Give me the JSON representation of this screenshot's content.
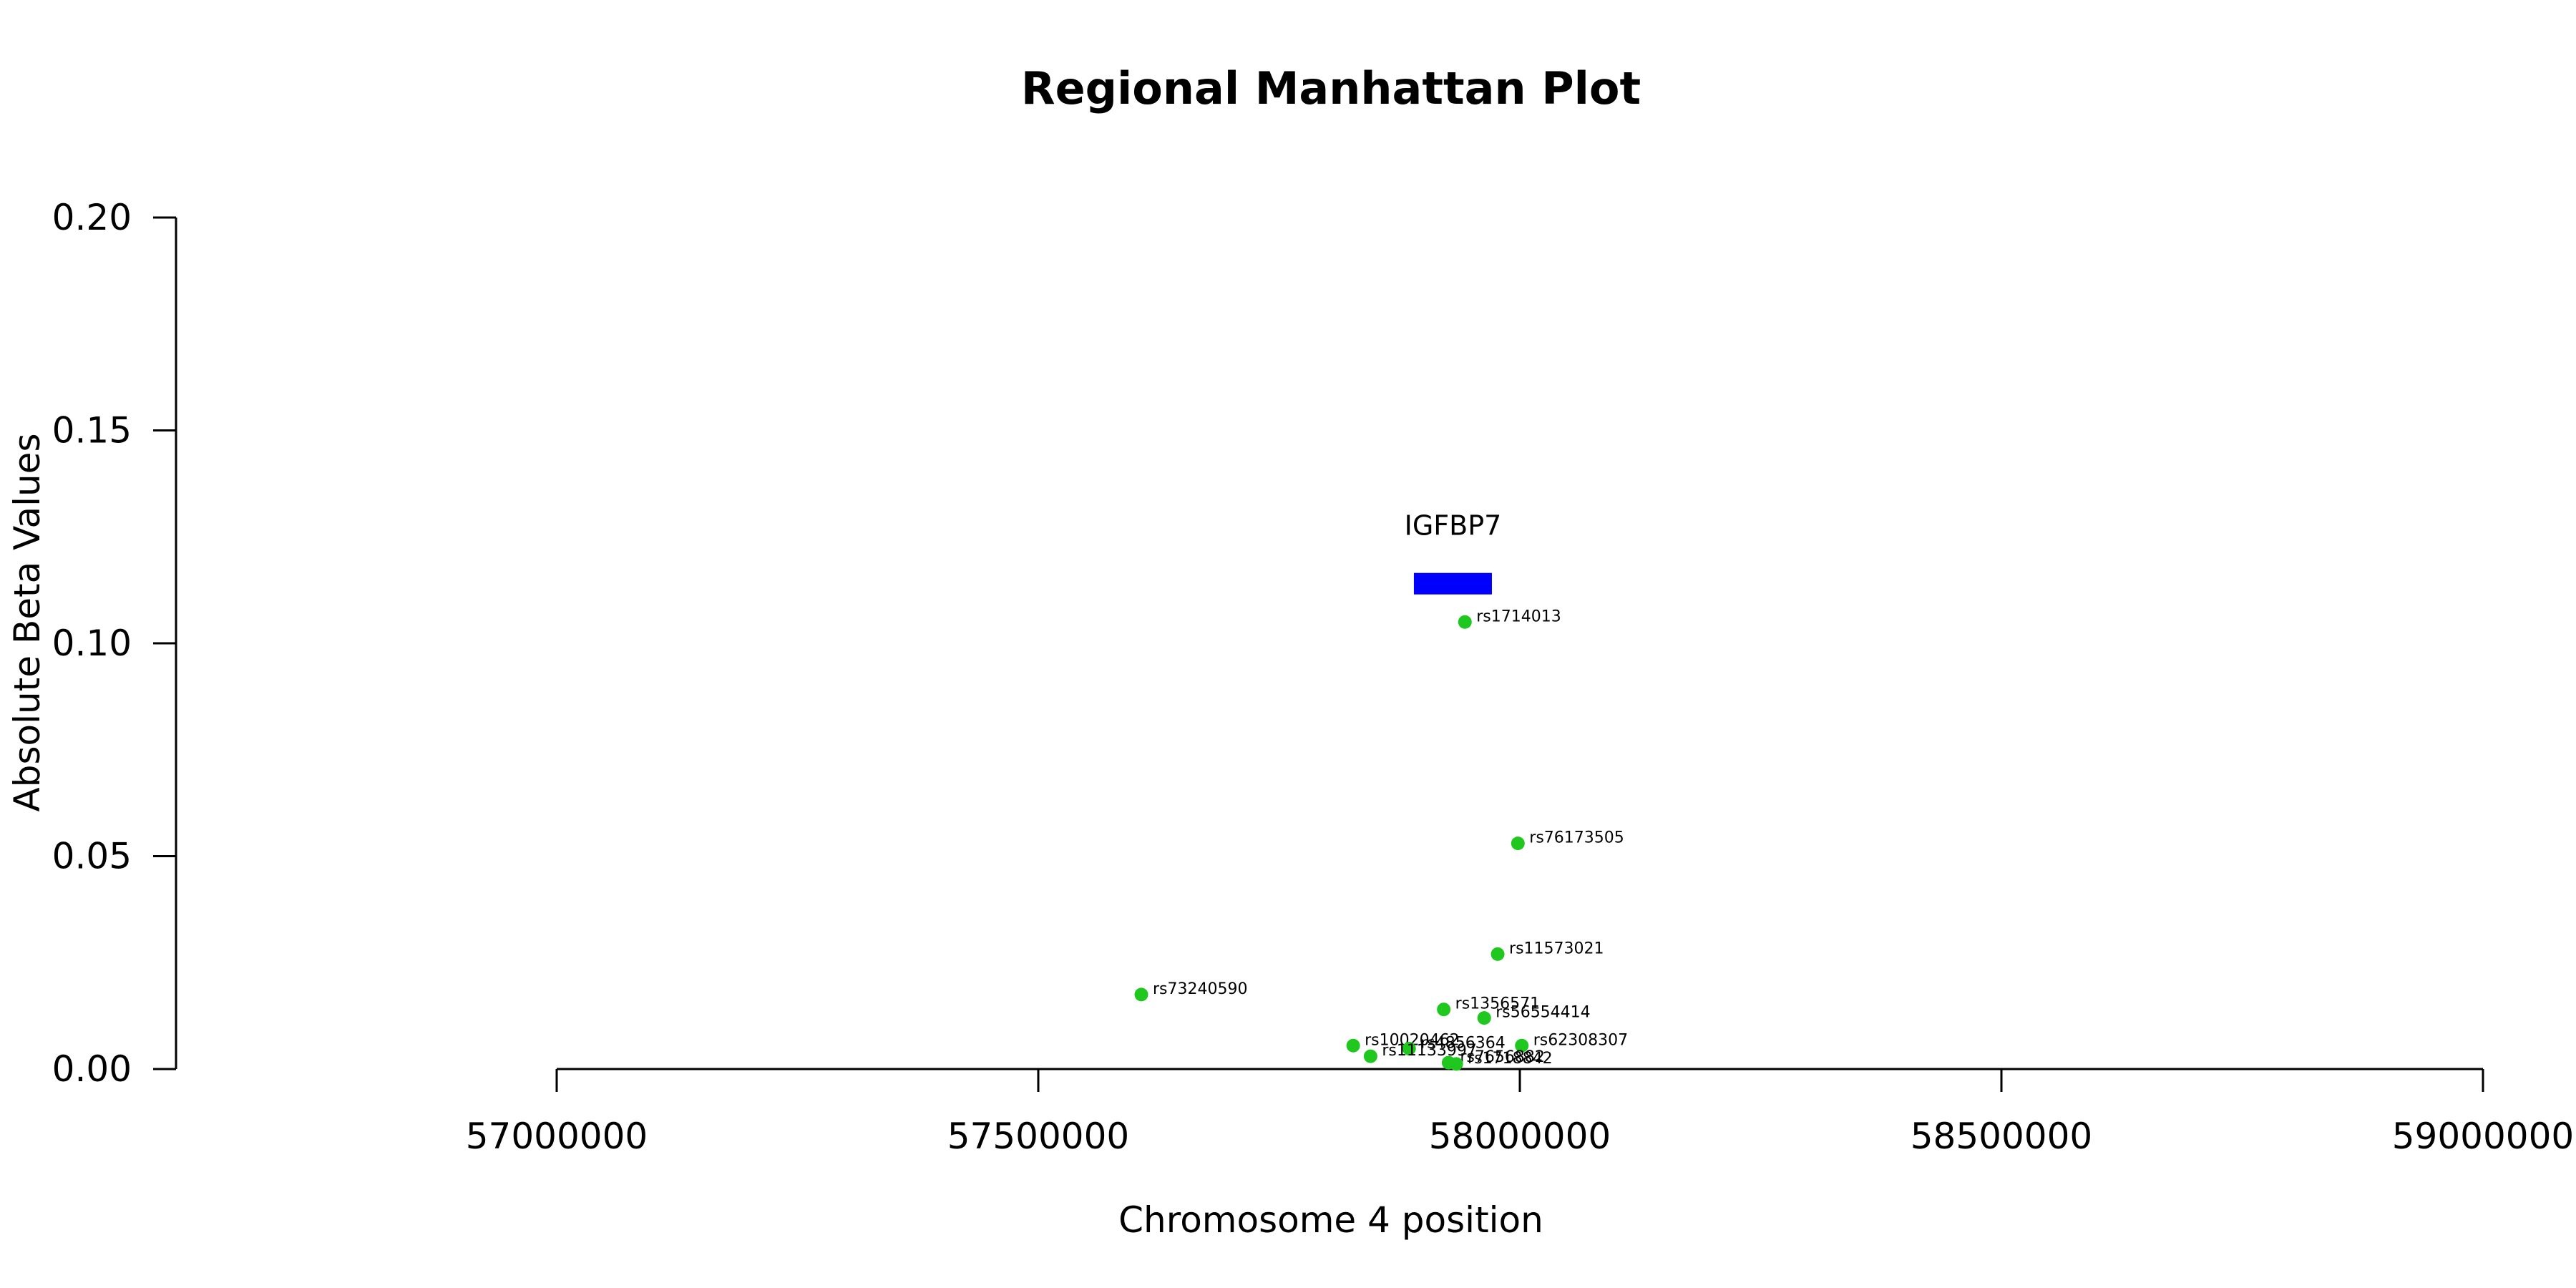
{
  "chart_data": {
    "type": "scatter",
    "title": "Regional Manhattan Plot",
    "xlabel": "Chromosome 4 position",
    "ylabel": "Absolute Beta Values",
    "xlim": [
      57000000,
      59000000
    ],
    "ylim": [
      0,
      0.2
    ],
    "x_ticks": [
      "57000000",
      "57500000",
      "58000000",
      "58500000",
      "59000000"
    ],
    "y_ticks": [
      "0.00",
      "0.05",
      "0.10",
      "0.15",
      "0.20"
    ],
    "point_color": "#1fc71f",
    "gene": {
      "name": "IGFBP7",
      "start": 57890000,
      "end": 57971000,
      "y": 0.114,
      "color": "#0000ff"
    },
    "points": [
      {
        "label": "rs1714013",
        "x": 57943000,
        "y": 0.105
      },
      {
        "label": "rs76173505",
        "x": 57998000,
        "y": 0.053
      },
      {
        "label": "rs11573021",
        "x": 57977000,
        "y": 0.027
      },
      {
        "label": "rs73240590",
        "x": 57607000,
        "y": 0.0175
      },
      {
        "label": "rs1356571",
        "x": 57921000,
        "y": 0.014
      },
      {
        "label": "rs56554414",
        "x": 57963000,
        "y": 0.012
      },
      {
        "label": "rs10020462",
        "x": 57827000,
        "y": 0.0055
      },
      {
        "label": "rs62308307",
        "x": 58002000,
        "y": 0.0055
      },
      {
        "label": "rs4856364",
        "x": 57885000,
        "y": 0.0048
      },
      {
        "label": "rs11133997",
        "x": 57845000,
        "y": 0.003
      },
      {
        "label": "rs7656882",
        "x": 57926000,
        "y": 0.0015
      },
      {
        "label": "rs1718842",
        "x": 57934000,
        "y": 0.0012
      }
    ]
  }
}
